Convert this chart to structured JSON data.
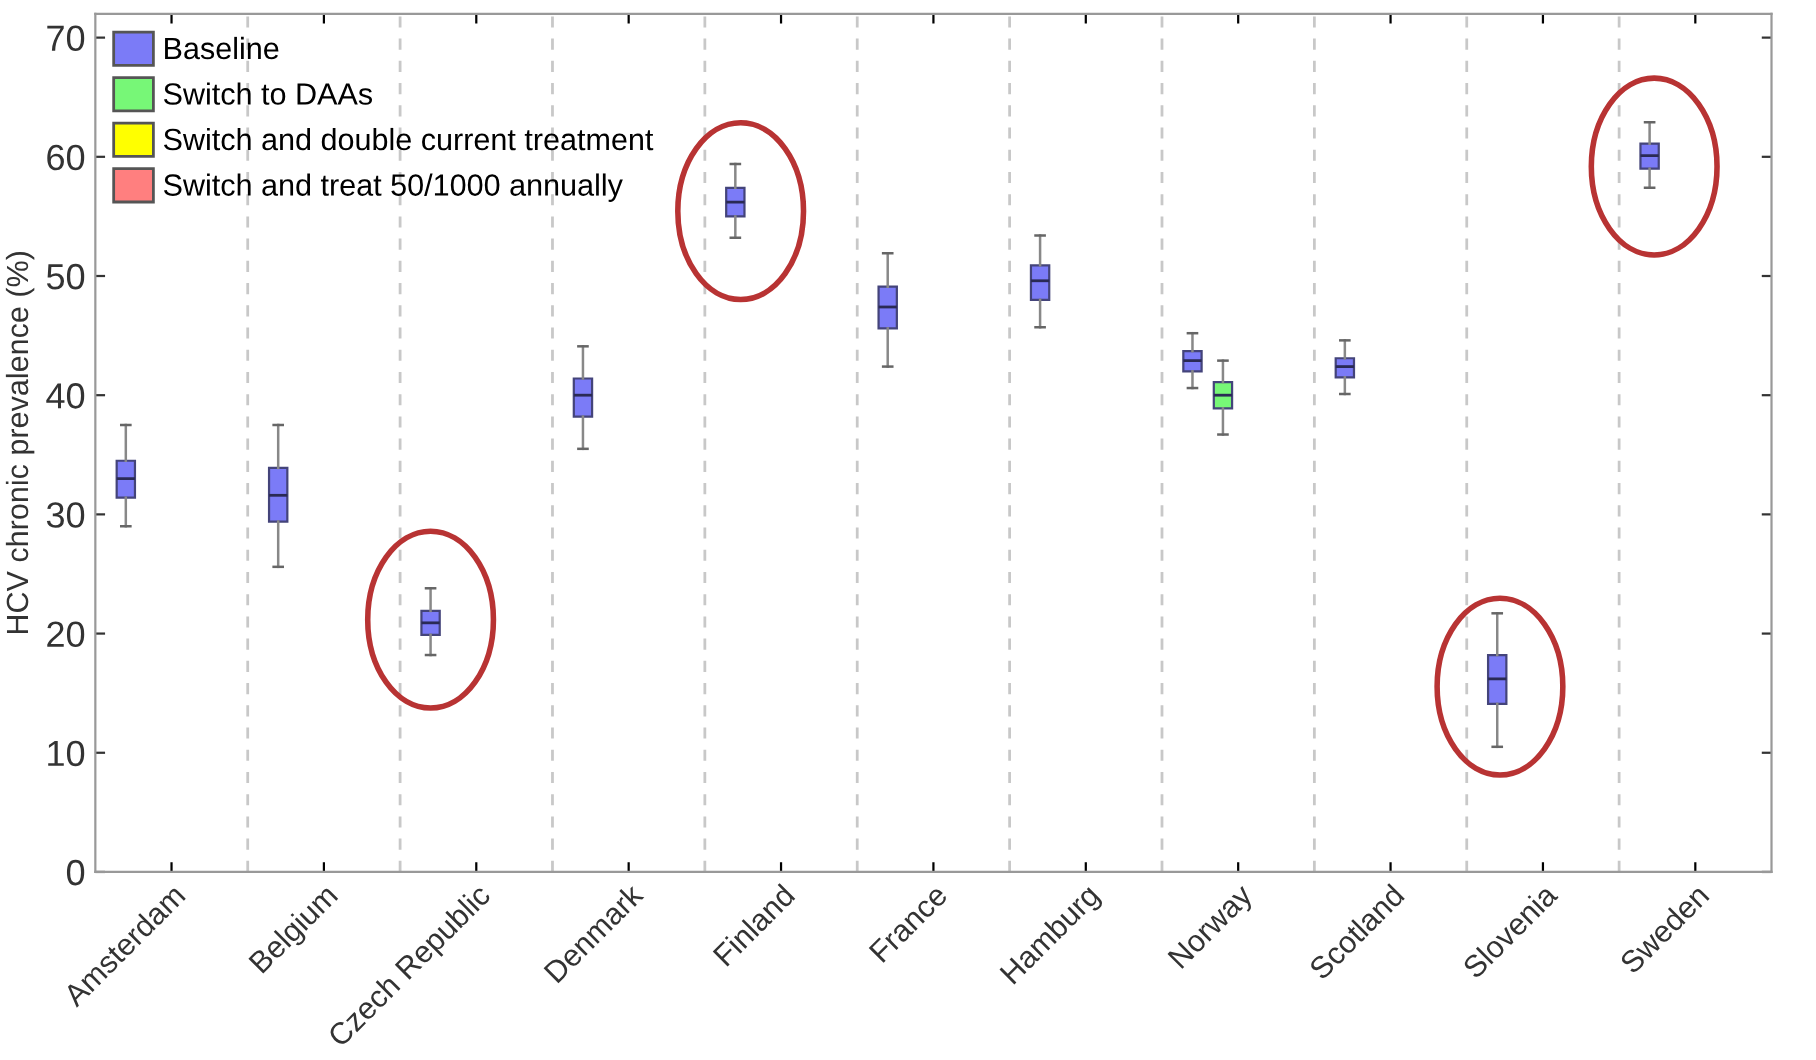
{
  "chart_data": {
    "type": "box",
    "ylabel": "HCV chronic prevalence (%)",
    "categories": [
      "Amsterdam",
      "Belgium",
      "Czech Republic",
      "Denmark",
      "Finland",
      "France",
      "Hamburg",
      "Norway",
      "Scotland",
      "Slovenia",
      "Sweden"
    ],
    "ylim": [
      0,
      72
    ],
    "yticks": [
      0,
      10,
      20,
      30,
      40,
      50,
      60,
      70
    ],
    "grid": "x",
    "legend": "top left",
    "series": [
      {
        "name": "Baseline",
        "color": "#7b7bf7",
        "boxes": [
          {
            "low": 29.0,
            "q1": 31.4,
            "median": 33.0,
            "q3": 34.5,
            "high": 37.5
          },
          {
            "low": 25.6,
            "q1": 29.4,
            "median": 31.6,
            "q3": 33.9,
            "high": 37.5
          },
          {
            "low": 18.2,
            "q1": 19.9,
            "median": 20.9,
            "q3": 21.9,
            "high": 23.8
          },
          {
            "low": 35.5,
            "q1": 38.2,
            "median": 40.0,
            "q3": 41.4,
            "high": 44.1
          },
          {
            "low": 53.2,
            "q1": 55.0,
            "median": 56.2,
            "q3": 57.4,
            "high": 59.4
          },
          {
            "low": 42.4,
            "q1": 45.6,
            "median": 47.4,
            "q3": 49.1,
            "high": 51.9
          },
          {
            "low": 45.7,
            "q1": 48.0,
            "median": 49.6,
            "q3": 50.9,
            "high": 53.4
          },
          {
            "low": 40.6,
            "q1": 42.0,
            "median": 42.9,
            "q3": 43.7,
            "high": 45.2
          },
          {
            "low": 40.1,
            "q1": 41.5,
            "median": 42.4,
            "q3": 43.1,
            "high": 44.6
          },
          {
            "low": 10.5,
            "q1": 14.1,
            "median": 16.2,
            "q3": 18.2,
            "high": 21.7
          },
          {
            "low": 57.4,
            "q1": 59.0,
            "median": 60.1,
            "q3": 61.1,
            "high": 62.9
          }
        ]
      },
      {
        "name": "Switch to DAAs",
        "color": "#77f777",
        "boxes": [
          null,
          null,
          null,
          null,
          null,
          null,
          null,
          {
            "low": 36.7,
            "q1": 38.9,
            "median": 40.0,
            "q3": 41.1,
            "high": 42.9
          },
          null,
          null,
          null
        ]
      },
      {
        "name": "Switch and double current treatment",
        "color": "#ffff00",
        "boxes": [
          null,
          null,
          null,
          null,
          null,
          null,
          null,
          null,
          null,
          null,
          null
        ]
      },
      {
        "name": "Switch and treat 50/1000 annually",
        "color": "#ff7f7f",
        "boxes": [
          null,
          null,
          null,
          null,
          null,
          null,
          null,
          null,
          null,
          null,
          null
        ]
      }
    ]
  }
}
